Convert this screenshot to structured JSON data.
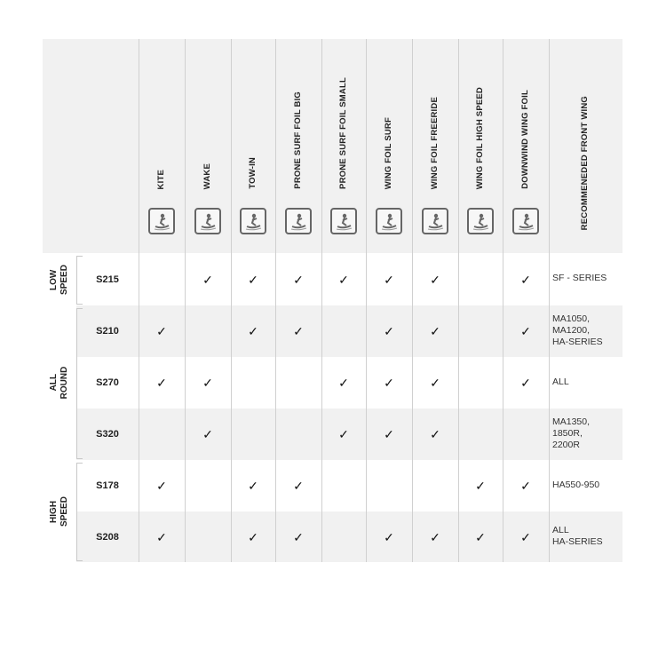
{
  "columns": [
    "KITE",
    "WAKE",
    "TOW-IN",
    "PRONE SURF FOIL BIG",
    "PRONE SURF FOIL SMALL",
    "WING FOIL SURF",
    "WING FOIL FREERIDE",
    "WING FOIL HIGH SPEED",
    "DOWNWIND WING FOIL"
  ],
  "column_icons": [
    "kitesurf-icon",
    "wakeboard-icon",
    "tow-in-icon",
    "prone-surf-big-icon",
    "prone-surf-small-icon",
    "wing-foil-surf-icon",
    "wing-foil-freeride-icon",
    "wing-foil-high-speed-icon",
    "downwind-wing-foil-icon"
  ],
  "recommended_header": "RECOMMENEDED FRONT WING",
  "check_symbol": "✓",
  "groups": [
    {
      "label": "LOW\nSPEED",
      "rows": 1
    },
    {
      "label": "ALL\nROUND",
      "rows": 3
    },
    {
      "label": "HIGH\nSPEED",
      "rows": 2
    }
  ],
  "rows": [
    {
      "model": "S215",
      "checks": [
        0,
        1,
        1,
        1,
        1,
        1,
        1,
        0,
        1
      ],
      "recommended": "SF - SERIES"
    },
    {
      "model": "S210",
      "checks": [
        1,
        0,
        1,
        1,
        0,
        1,
        1,
        0,
        1
      ],
      "recommended": "MA1050,\nMA1200,\nHA-SERIES"
    },
    {
      "model": "S270",
      "checks": [
        1,
        1,
        0,
        0,
        1,
        1,
        1,
        0,
        1
      ],
      "recommended": "ALL"
    },
    {
      "model": "S320",
      "checks": [
        0,
        1,
        0,
        0,
        1,
        1,
        1,
        0,
        0
      ],
      "recommended": "MA1350,\n1850R,\n2200R"
    },
    {
      "model": "S178",
      "checks": [
        1,
        0,
        1,
        1,
        0,
        0,
        0,
        1,
        1
      ],
      "recommended": "HA550-950"
    },
    {
      "model": "S208",
      "checks": [
        1,
        0,
        1,
        1,
        0,
        1,
        1,
        1,
        1
      ],
      "recommended": "ALL\nHA-SERIES"
    }
  ]
}
